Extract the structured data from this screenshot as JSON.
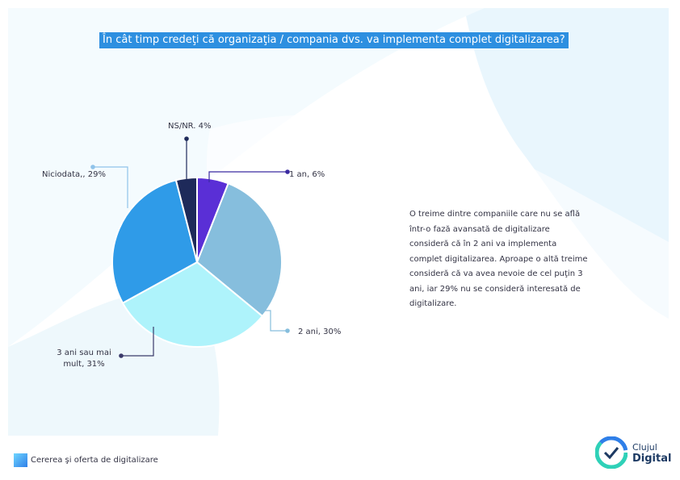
{
  "title": "În cât timp credeţi că organizaţia / compania dvs. va implementa complet  digitalizarea?",
  "description": "O treime dintre companiile care nu se află într-o fază avansată de digitalizare consideră că în 2 ani va implementa complet digitalizarea. Aproape o altă treime consideră că va avea nevoie de cel puţin 3 ani, iar 29% nu se consideră interesată de digitalizare.",
  "footer": {
    "label": "Cererea şi oferta de digitalizare"
  },
  "logo": {
    "line1": "Clujul",
    "line2": "Digital",
    "icon": "cluj-digital-logo-icon"
  },
  "chart_data": {
    "type": "pie",
    "slices": [
      {
        "name": "1 an",
        "value": 6,
        "label": "1 an, 6%",
        "color": "#5a2fd6"
      },
      {
        "name": "2 ani",
        "value": 30,
        "label": "2 ani, 30%",
        "color": "#86bedd"
      },
      {
        "name": "3 ani sau mai mult",
        "value": 31,
        "label": "3 ani sau mai mult, 31%",
        "color": "#aef3fb"
      },
      {
        "name": "Niciodata,",
        "value": 29,
        "label": "Niciodata,, 29%",
        "color": "#2f9be8"
      },
      {
        "name": "NS/NR",
        "value": 4,
        "label": "NS/NR. 4%",
        "color": "#1e2a5a"
      }
    ],
    "start_angle_deg": 0,
    "legend": "none"
  }
}
